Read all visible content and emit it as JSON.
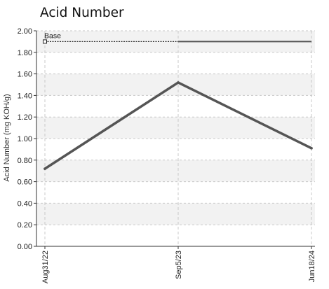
{
  "chart_data": {
    "type": "line",
    "title": "Acid Number",
    "ylabel": "Acid Number (mg KOH/g)",
    "xlabel": "",
    "ylim": [
      0.0,
      2.0
    ],
    "yticks": [
      "0.00",
      "0.20",
      "0.40",
      "0.60",
      "0.80",
      "1.00",
      "1.20",
      "1.40",
      "1.60",
      "1.80",
      "2.00"
    ],
    "categories": [
      "Aug31/22",
      "Sep5/23",
      "Jun18/24"
    ],
    "series": [
      {
        "values": [
          0.72,
          1.52,
          0.91
        ]
      }
    ],
    "reference_line": {
      "label": "Base",
      "value": 1.9
    },
    "grid": true,
    "colors": {
      "line": "#555555",
      "band": "#f2f2f2",
      "grid": "#c8c8c8"
    }
  }
}
